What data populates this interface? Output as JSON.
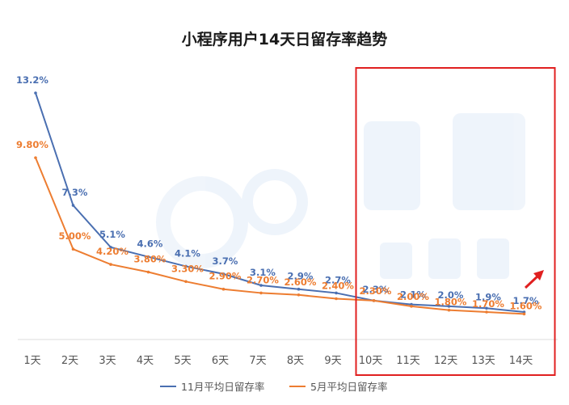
{
  "chart_data": {
    "type": "line",
    "title": "小程序用户14天日留存率趋势",
    "categories": [
      "1天",
      "2天",
      "3天",
      "4天",
      "5天",
      "6天",
      "7天",
      "8天",
      "9天",
      "10天",
      "11天",
      "12天",
      "13天",
      "14天"
    ],
    "ylim": [
      0,
      14
    ],
    "grid": false,
    "legend": "bottom",
    "series": [
      {
        "name": "11月平均日留存率",
        "color": "#4a6fb1",
        "values": [
          13.2,
          7.3,
          5.1,
          4.6,
          4.1,
          3.7,
          3.1,
          2.9,
          2.7,
          2.3,
          2.1,
          2.0,
          1.9,
          1.7
        ],
        "labels": [
          "13.2%",
          "7.3%",
          "5.1%",
          "4.6%",
          "4.1%",
          "3.7%",
          "3.1%",
          "2.9%",
          "2.7%",
          "2.3%",
          "2.1%",
          "2.0%",
          "1.9%",
          "1.7%"
        ]
      },
      {
        "name": "5月平均日留存率",
        "color": "#ed7d31",
        "values": [
          9.8,
          5.0,
          4.2,
          3.8,
          3.3,
          2.9,
          2.7,
          2.6,
          2.4,
          2.3,
          2.0,
          1.8,
          1.7,
          1.6
        ],
        "labels": [
          "9.80%",
          "5.00%",
          "4.20%",
          "3.80%",
          "3.30%",
          "2.90%",
          "2.70%",
          "2.60%",
          "2.40%",
          "2.30%",
          "2.00%",
          "1.80%",
          "1.70%",
          "1.60%"
        ]
      }
    ],
    "highlight": {
      "from": "10天",
      "to": "14天",
      "color": "#e02020"
    }
  }
}
